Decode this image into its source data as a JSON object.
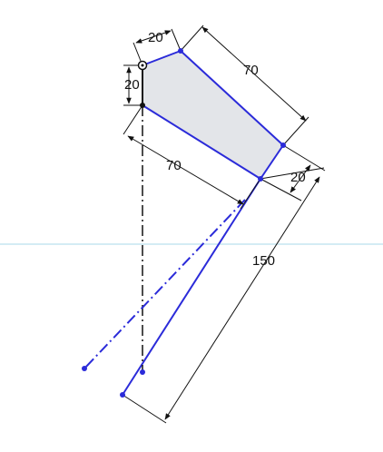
{
  "colors": {
    "background": "#ffffff",
    "profile_fill": "#e3e5e9",
    "sketch_line": "#2b2bd9",
    "dimension_line": "#111111",
    "construction_line": "#111111",
    "reference_line": "#a9d8e8"
  },
  "dimensions": {
    "top_width": "20",
    "left_height": "20",
    "upper_length": "70",
    "lower_length": "70",
    "right_end": "20",
    "total_length": "150"
  },
  "icons": {
    "origin_marker": "fixed-point-icon"
  }
}
